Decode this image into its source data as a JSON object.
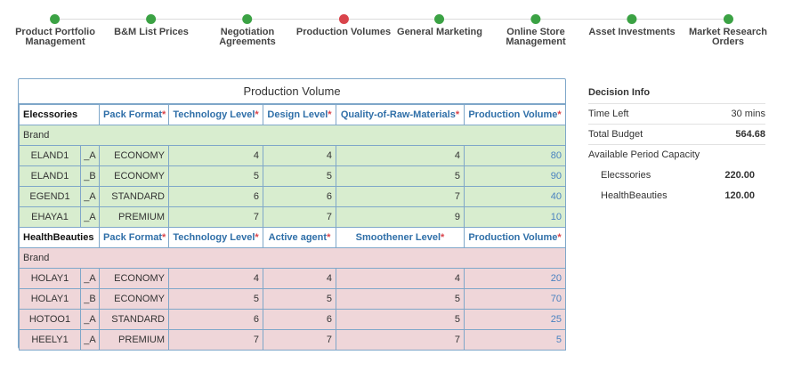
{
  "steps": [
    {
      "label": "Product Portfolio\nManagement",
      "state": "done"
    },
    {
      "label": "B&M List Prices",
      "state": "done"
    },
    {
      "label": "Negotiation\nAgreements",
      "state": "done"
    },
    {
      "label": "Production Volumes",
      "state": "current"
    },
    {
      "label": "General Marketing",
      "state": "done"
    },
    {
      "label": "Online Store\nManagement",
      "state": "done"
    },
    {
      "label": "Asset Investments",
      "state": "done"
    },
    {
      "label": "Market Research\nOrders",
      "state": "done"
    }
  ],
  "colors": {
    "done": "#3ba244",
    "current": "#d9444b",
    "accent": "#2f6fa8",
    "green_row": "#d8edcf",
    "pink_row": "#efd6d9"
  },
  "table": {
    "title": "Production Volume",
    "brand_label": "Brand",
    "segments": [
      {
        "name": "Elecssories",
        "headers": [
          "Pack Format",
          "Technology Level",
          "Design Level",
          "Quality-of-Raw-Materials",
          "Production Volume"
        ],
        "rows": [
          {
            "name": "ELAND1",
            "var": "_A",
            "fmt": "ECONOMY",
            "a": "4",
            "b": "4",
            "c": "4",
            "vol": "80"
          },
          {
            "name": "ELAND1",
            "var": "_B",
            "fmt": "ECONOMY",
            "a": "5",
            "b": "5",
            "c": "5",
            "vol": "90"
          },
          {
            "name": "EGEND1",
            "var": "_A",
            "fmt": "STANDARD",
            "a": "6",
            "b": "6",
            "c": "7",
            "vol": "40"
          },
          {
            "name": "EHAYA1",
            "var": "_A",
            "fmt": "PREMIUM",
            "a": "7",
            "b": "7",
            "c": "9",
            "vol": "10"
          }
        ]
      },
      {
        "name": "HealthBeauties",
        "headers": [
          "Pack Format",
          "Technology Level",
          "Active agent",
          "Smoothener Level",
          "Production Volume"
        ],
        "rows": [
          {
            "name": "HOLAY1",
            "var": "_A",
            "fmt": "ECONOMY",
            "a": "4",
            "b": "4",
            "c": "4",
            "vol": "20"
          },
          {
            "name": "HOLAY1",
            "var": "_B",
            "fmt": "ECONOMY",
            "a": "5",
            "b": "5",
            "c": "5",
            "vol": "70"
          },
          {
            "name": "HOTOO1",
            "var": "_A",
            "fmt": "STANDARD",
            "a": "6",
            "b": "6",
            "c": "5",
            "vol": "25"
          },
          {
            "name": "HEELY1",
            "var": "_A",
            "fmt": "PREMIUM",
            "a": "7",
            "b": "7",
            "c": "7",
            "vol": "5"
          }
        ]
      }
    ]
  },
  "decision_info": {
    "title": "Decision Info",
    "time_left_label": "Time Left",
    "time_left_value": "30 mins",
    "budget_label": "Total Budget",
    "budget_value": "564.68",
    "capacity_label": "Available Period Capacity",
    "capacity": [
      {
        "name": "Elecssories",
        "value": "220.00"
      },
      {
        "name": "HealthBeauties",
        "value": "120.00"
      }
    ]
  }
}
